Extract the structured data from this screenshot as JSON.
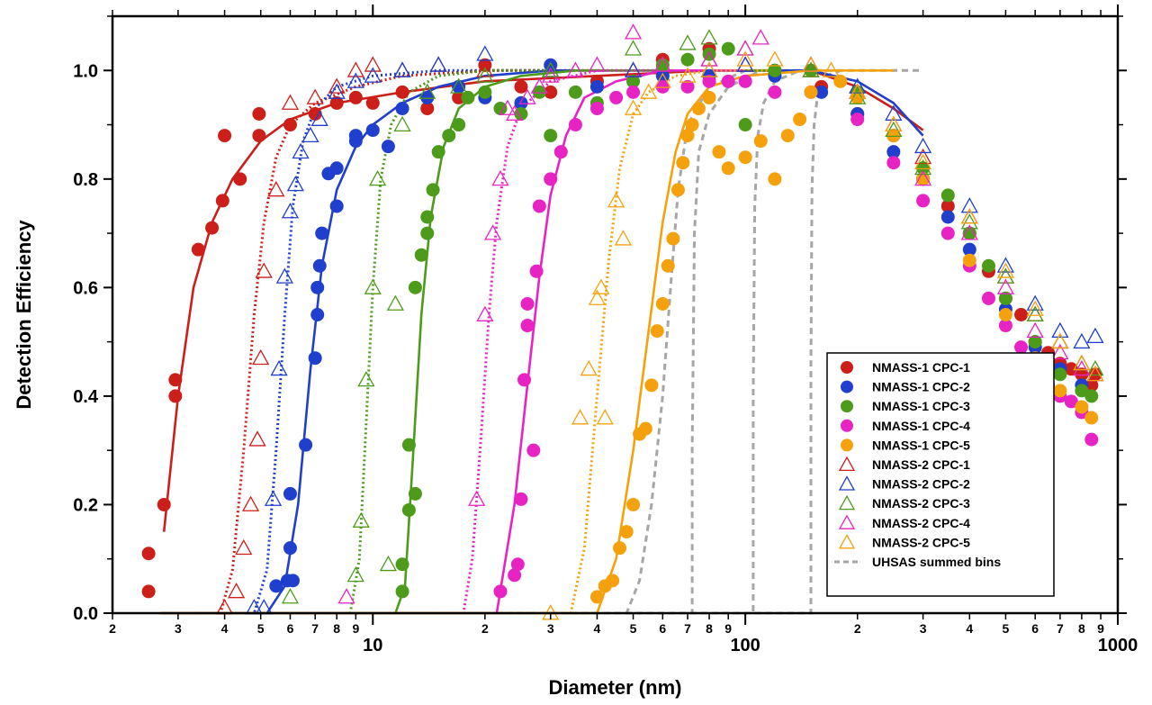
{
  "chart_data": {
    "type": "scatter",
    "xlabel": "Diameter (nm)",
    "ylabel": "Detection Efficiency",
    "x_scale": "log",
    "xlim": [
      2,
      1000
    ],
    "ylim": [
      0,
      1.1
    ],
    "x_major_ticks": [
      10,
      100,
      1000
    ],
    "x_minor_ticks": [
      2,
      3,
      4,
      5,
      6,
      7,
      8,
      9,
      20,
      30,
      40,
      50,
      60,
      70,
      80,
      90,
      200,
      300,
      400,
      500,
      600,
      700,
      800,
      900
    ],
    "x_minor_labels": [
      "2",
      "3",
      "4",
      "5",
      "6",
      "7",
      "8",
      "9",
      "2",
      "3",
      "4",
      "5",
      "6",
      "7",
      "8",
      "9",
      "2",
      "3",
      "4",
      "5",
      "6",
      "7",
      "8",
      "9"
    ],
    "x_major_labels": [
      "10",
      "100",
      "1000"
    ],
    "y_ticks": [
      0,
      0.2,
      0.4,
      0.6,
      0.8,
      1.0
    ],
    "y_tick_labels": [
      "0.0",
      "0.2",
      "0.4",
      "0.6",
      "0.8",
      "1.0"
    ],
    "grid": false,
    "legend_position": "bottom-right",
    "series": [
      {
        "name": "NMASS-1 CPC-1",
        "color": "#cc1f1a",
        "marker": "filled-circle",
        "x": [
          2.5,
          2.5,
          2.75,
          2.95,
          2.95,
          3.4,
          3.7,
          3.95,
          4.0,
          4.4,
          4.95,
          4.95,
          6,
          7,
          8,
          9,
          10,
          12,
          14,
          17,
          20,
          25,
          30,
          40,
          60,
          80,
          120,
          160,
          200,
          250,
          300,
          350,
          400,
          450,
          500,
          550,
          600,
          650,
          700,
          750,
          800,
          850,
          870
        ],
        "y": [
          0.04,
          0.11,
          0.2,
          0.4,
          0.43,
          0.67,
          0.71,
          0.76,
          0.88,
          0.8,
          0.88,
          0.92,
          0.9,
          0.92,
          0.94,
          0.95,
          0.94,
          0.96,
          0.93,
          0.95,
          1.01,
          0.97,
          0.96,
          0.98,
          1.02,
          1.04,
          1.0,
          0.97,
          0.92,
          0.88,
          0.8,
          0.75,
          0.7,
          0.63,
          0.58,
          0.55,
          0.5,
          0.48,
          0.46,
          0.45,
          0.44,
          0.42,
          0.44
        ]
      },
      {
        "name": "NMASS-1 CPC-2",
        "color": "#1f3fcc",
        "marker": "filled-circle",
        "x": [
          5.5,
          5.9,
          6.0,
          6.0,
          6.1,
          6.6,
          7.0,
          7.1,
          7.1,
          7.2,
          7.3,
          7.6,
          8.0,
          8.0,
          9.0,
          9.0,
          10,
          11,
          12,
          14,
          17,
          20,
          25,
          30,
          40,
          60,
          80,
          120,
          160,
          200,
          250,
          300,
          350,
          400,
          500,
          600,
          700,
          800
        ],
        "y": [
          0.05,
          0.06,
          0.12,
          0.22,
          0.06,
          0.31,
          0.47,
          0.55,
          0.6,
          0.64,
          0.7,
          0.81,
          0.75,
          0.82,
          0.87,
          0.88,
          0.89,
          0.86,
          0.93,
          0.95,
          0.97,
          0.95,
          0.94,
          1.01,
          0.97,
          0.99,
          0.99,
          0.99,
          0.96,
          0.92,
          0.85,
          0.8,
          0.73,
          0.67,
          0.56,
          0.49,
          0.45,
          0.42
        ]
      },
      {
        "name": "NMASS-1 CPC-3",
        "color": "#4d9b1a",
        "marker": "filled-circle",
        "x": [
          12,
          12,
          12.5,
          12.5,
          13,
          13,
          13.5,
          14,
          14,
          14.5,
          15,
          16,
          17,
          18,
          20,
          22,
          25,
          28,
          30,
          35,
          40,
          50,
          60,
          70,
          80,
          90,
          100,
          120,
          150,
          200,
          250,
          300,
          350,
          400,
          450,
          500,
          600,
          700,
          800,
          850
        ],
        "y": [
          0.04,
          0.09,
          0.19,
          0.31,
          0.22,
          0.6,
          0.66,
          0.7,
          0.73,
          0.78,
          0.85,
          0.88,
          0.9,
          0.95,
          0.96,
          0.93,
          0.92,
          0.96,
          0.88,
          0.96,
          0.94,
          0.98,
          1.01,
          1.02,
          1.03,
          1.04,
          0.9,
          1.0,
          1.0,
          0.96,
          0.88,
          0.82,
          0.77,
          0.7,
          0.64,
          0.58,
          0.5,
          0.44,
          0.41,
          0.4
        ]
      },
      {
        "name": "NMASS-1 CPC-4",
        "color": "#e823c4",
        "marker": "filled-circle",
        "x": [
          22,
          24,
          24.5,
          25,
          25.5,
          26,
          26,
          27,
          27.5,
          28,
          30,
          32,
          35,
          40,
          45,
          50,
          60,
          70,
          80,
          90,
          100,
          120,
          150,
          200,
          250,
          300,
          350,
          400,
          450,
          500,
          550,
          600,
          650,
          700,
          750,
          800,
          850
        ],
        "y": [
          0.04,
          0.07,
          0.09,
          0.21,
          0.43,
          0.57,
          0.53,
          0.3,
          0.63,
          0.75,
          0.8,
          0.85,
          0.9,
          0.93,
          0.95,
          0.96,
          0.97,
          0.97,
          0.98,
          0.98,
          0.98,
          0.96,
          0.96,
          0.91,
          0.83,
          0.76,
          0.7,
          0.64,
          0.58,
          0.53,
          0.49,
          0.46,
          0.42,
          0.4,
          0.39,
          0.37,
          0.32
        ]
      },
      {
        "name": "NMASS-1 CPC-5",
        "color": "#f5a10e",
        "marker": "filled-circle",
        "x": [
          40,
          42,
          44,
          46,
          48,
          50,
          52,
          54,
          56,
          58,
          60,
          62,
          64,
          66,
          68,
          70,
          72,
          75,
          80,
          85,
          90,
          100,
          110,
          120,
          130,
          140,
          150,
          180,
          200,
          250,
          300,
          400,
          500,
          600,
          700,
          800,
          850
        ],
        "y": [
          0.03,
          0.05,
          0.06,
          0.12,
          0.15,
          0.2,
          0.33,
          0.34,
          0.42,
          0.52,
          0.57,
          0.64,
          0.69,
          0.78,
          0.83,
          0.88,
          0.9,
          0.93,
          0.95,
          0.85,
          0.82,
          0.84,
          0.87,
          0.8,
          0.88,
          0.91,
          0.96,
          0.98,
          0.95,
          0.88,
          0.8,
          0.65,
          0.55,
          0.47,
          0.41,
          0.38,
          0.36
        ]
      },
      {
        "name": "NMASS-2 CPC-1",
        "color": "#cc1f1a",
        "marker": "open-triangle",
        "x": [
          4.0,
          4.3,
          4.5,
          4.7,
          4.9,
          5.0,
          5.1,
          5.5,
          6,
          7,
          8,
          9,
          10,
          12,
          15,
          20,
          30,
          50,
          80,
          100,
          150,
          200,
          250,
          300,
          400,
          500,
          600,
          700,
          800,
          870
        ],
        "y": [
          0.01,
          0.04,
          0.12,
          0.2,
          0.32,
          0.47,
          0.63,
          0.78,
          0.94,
          0.95,
          0.97,
          1.0,
          1.01,
          1.0,
          1.01,
          1.0,
          1.0,
          1.0,
          1.02,
          1.01,
          1.0,
          0.96,
          0.9,
          0.84,
          0.73,
          0.62,
          0.55,
          0.5,
          0.46,
          0.44
        ]
      },
      {
        "name": "NMASS-2 CPC-2",
        "color": "#1f3fcc",
        "marker": "open-triangle",
        "x": [
          4.8,
          5.1,
          5.4,
          5.6,
          5.8,
          6.0,
          6.2,
          6.4,
          6.8,
          7.2,
          8,
          9,
          10,
          12,
          15,
          20,
          30,
          50,
          80,
          100,
          150,
          200,
          250,
          300,
          400,
          500,
          600,
          700,
          800,
          870
        ],
        "y": [
          0.01,
          0.01,
          0.21,
          0.45,
          0.62,
          0.74,
          0.79,
          0.85,
          0.88,
          0.91,
          0.96,
          0.98,
          0.99,
          1.0,
          1.01,
          1.03,
          1.0,
          1.0,
          1.0,
          1.01,
          1.01,
          0.97,
          0.92,
          0.86,
          0.75,
          0.64,
          0.57,
          0.52,
          0.5,
          0.51
        ]
      },
      {
        "name": "NMASS-2 CPC-3",
        "color": "#4d9b1a",
        "marker": "open-triangle",
        "x": [
          6.0,
          9.0,
          9.3,
          9.6,
          10,
          10.3,
          11,
          11.5,
          12,
          14,
          17,
          20,
          30,
          50,
          70,
          80,
          100,
          150,
          200,
          250,
          300,
          400,
          500,
          600,
          700,
          800,
          870
        ],
        "y": [
          0.03,
          0.07,
          0.17,
          0.43,
          0.6,
          0.8,
          0.09,
          0.57,
          0.9,
          0.96,
          0.97,
          0.99,
          1.0,
          1.04,
          1.05,
          1.06,
          1.04,
          1.0,
          0.95,
          0.89,
          0.82,
          0.72,
          0.62,
          0.55,
          0.5,
          0.46,
          0.45
        ]
      },
      {
        "name": "NMASS-2 CPC-4",
        "color": "#e823c4",
        "marker": "open-triangle",
        "x": [
          8.5,
          19,
          20,
          21,
          22,
          23,
          24,
          26,
          28,
          30,
          35,
          40,
          50,
          60,
          80,
          100,
          110,
          150,
          200,
          300,
          400,
          500,
          600,
          700,
          800,
          870
        ],
        "y": [
          0.03,
          0.21,
          0.55,
          0.7,
          0.8,
          0.93,
          0.92,
          0.95,
          0.97,
          0.99,
          1.0,
          1.01,
          1.07,
          1.01,
          1.02,
          1.04,
          1.06,
          1.01,
          0.96,
          0.8,
          0.7,
          0.6,
          0.52,
          0.48,
          0.45,
          0.44
        ]
      },
      {
        "name": "NMASS-2 CPC-5",
        "color": "#f5a10e",
        "marker": "open-triangle",
        "x": [
          30,
          36,
          38,
          40,
          41,
          42,
          45,
          47,
          50,
          55,
          60,
          70,
          80,
          100,
          120,
          150,
          170,
          200,
          250,
          300,
          400,
          500,
          600,
          700,
          800,
          870
        ],
        "y": [
          0.0,
          0.36,
          0.45,
          0.58,
          0.6,
          0.36,
          0.76,
          0.69,
          0.93,
          0.96,
          0.98,
          0.99,
          1.0,
          1.02,
          1.02,
          1.01,
          1.0,
          0.96,
          0.9,
          0.83,
          0.73,
          0.63,
          0.56,
          0.5,
          0.46,
          0.44
        ]
      },
      {
        "name": "UHSAS summed bins",
        "color": "#a6a6a6",
        "marker": "dashed-line",
        "x": [],
        "y": []
      }
    ],
    "fit_curves": [
      {
        "color": "#cc1f1a",
        "style": "solid",
        "x": [
          2.75,
          3.0,
          3.3,
          3.7,
          4.2,
          5,
          6,
          8,
          12,
          20,
          40,
          80,
          150,
          200,
          250,
          300
        ],
        "y": [
          0.15,
          0.4,
          0.6,
          0.72,
          0.8,
          0.87,
          0.91,
          0.94,
          0.96,
          0.98,
          0.99,
          1.0,
          1.0,
          0.97,
          0.93,
          0.89
        ]
      },
      {
        "color": "#cc1f1a",
        "style": "dotted",
        "x": [
          2.7,
          3.9,
          4.2,
          4.5,
          4.8,
          5.1,
          5.5,
          6,
          7,
          9,
          12,
          20,
          40
        ],
        "y": [
          0.0,
          0.0,
          0.08,
          0.3,
          0.55,
          0.72,
          0.84,
          0.9,
          0.94,
          0.97,
          0.99,
          1.0,
          1.0
        ]
      },
      {
        "color": "#1f3fcc",
        "style": "solid",
        "x": [
          2.7,
          5.2,
          5.8,
          6.3,
          6.8,
          7.3,
          8,
          9,
          10,
          12,
          15,
          20,
          30,
          60,
          150,
          200,
          250,
          300
        ],
        "y": [
          0.0,
          0.0,
          0.05,
          0.2,
          0.45,
          0.64,
          0.78,
          0.86,
          0.9,
          0.94,
          0.97,
          0.99,
          1.0,
          1.0,
          1.0,
          0.98,
          0.94,
          0.88
        ]
      },
      {
        "color": "#1f3fcc",
        "style": "dotted",
        "x": [
          2.7,
          4.8,
          5.2,
          5.5,
          5.8,
          6.1,
          6.5,
          7,
          8,
          10,
          15,
          30
        ],
        "y": [
          0.0,
          0.0,
          0.08,
          0.3,
          0.55,
          0.75,
          0.87,
          0.93,
          0.97,
          0.99,
          1.0,
          1.0
        ]
      },
      {
        "color": "#4d9b1a",
        "style": "solid",
        "x": [
          2.7,
          11.5,
          12.2,
          12.8,
          13.5,
          14.3,
          15.5,
          17,
          20,
          25,
          35,
          60,
          120
        ],
        "y": [
          0.0,
          0.0,
          0.05,
          0.28,
          0.55,
          0.73,
          0.86,
          0.93,
          0.97,
          0.99,
          1.0,
          1.0,
          1.0
        ]
      },
      {
        "color": "#4d9b1a",
        "style": "dotted",
        "x": [
          2.7,
          8.7,
          9.2,
          9.6,
          10,
          10.5,
          11.2,
          12.5,
          15,
          20,
          30
        ],
        "y": [
          0.0,
          0.0,
          0.1,
          0.35,
          0.6,
          0.8,
          0.9,
          0.96,
          0.99,
          1.0,
          1.0
        ]
      },
      {
        "color": "#e823c4",
        "style": "solid",
        "x": [
          2.7,
          21.5,
          24,
          26,
          28,
          30,
          33,
          37,
          45,
          60,
          100
        ],
        "y": [
          0.0,
          0.0,
          0.2,
          0.42,
          0.62,
          0.77,
          0.88,
          0.95,
          0.98,
          1.0,
          1.0
        ]
      },
      {
        "color": "#e823c4",
        "style": "dotted",
        "x": [
          2.7,
          17.5,
          18.5,
          19.5,
          20.5,
          21.5,
          23,
          25,
          30,
          40,
          60
        ],
        "y": [
          0.0,
          0.0,
          0.1,
          0.32,
          0.55,
          0.72,
          0.86,
          0.93,
          0.98,
          1.0,
          1.0
        ]
      },
      {
        "color": "#f5a10e",
        "style": "solid",
        "x": [
          2.7,
          40,
          45,
          50,
          55,
          60,
          65,
          70,
          80,
          100,
          150,
          250
        ],
        "y": [
          0.0,
          0.0,
          0.1,
          0.3,
          0.52,
          0.72,
          0.85,
          0.92,
          0.97,
          0.99,
          1.0,
          1.0
        ]
      },
      {
        "color": "#f5a10e",
        "style": "dotted",
        "x": [
          2.7,
          34,
          37,
          40,
          43,
          46,
          50,
          55,
          65,
          80,
          120
        ],
        "y": [
          0.0,
          0.0,
          0.12,
          0.4,
          0.65,
          0.82,
          0.92,
          0.96,
          0.99,
          1.0,
          1.0
        ]
      }
    ],
    "uhsas_curves": [
      {
        "x": [
          2.7,
          48,
          52,
          56,
          60,
          63,
          66,
          70,
          80,
          100,
          200,
          300
        ],
        "y": [
          0.0,
          0.0,
          0.06,
          0.2,
          0.4,
          0.6,
          0.78,
          0.9,
          0.97,
          1.0,
          1.0,
          1.0
        ]
      },
      {
        "x": [
          2.7,
          72,
          72,
          73,
          75,
          80,
          90,
          110
        ],
        "y": [
          0.0,
          0.0,
          0.3,
          0.7,
          0.85,
          0.92,
          0.97,
          1.0
        ]
      },
      {
        "x": [
          2.7,
          105,
          105,
          106,
          108,
          112,
          120,
          140
        ],
        "y": [
          0.0,
          0.0,
          0.4,
          0.75,
          0.88,
          0.94,
          0.98,
          1.0
        ]
      },
      {
        "x": [
          2.7,
          150,
          150,
          151,
          153,
          156,
          165,
          180
        ],
        "y": [
          0.0,
          0.0,
          0.45,
          0.78,
          0.9,
          0.95,
          0.99,
          1.0
        ]
      }
    ]
  }
}
